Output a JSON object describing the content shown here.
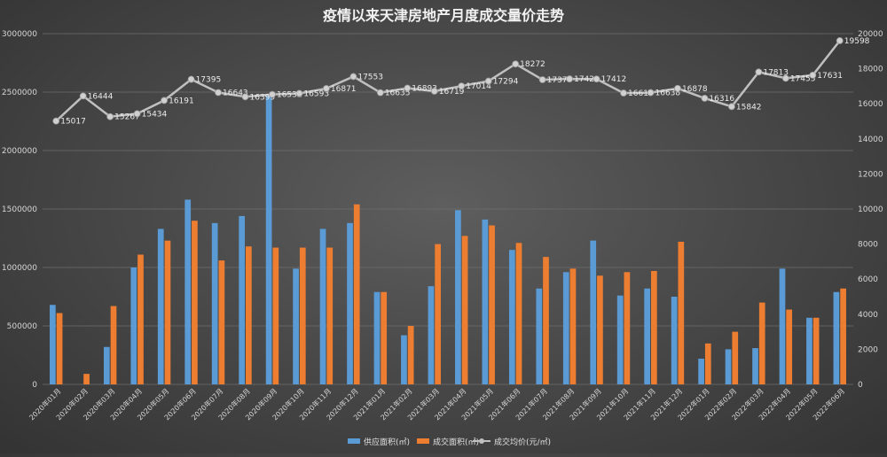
{
  "chart_data": {
    "type": "bar",
    "title": "疫情以来天津房地产月度成交量价走势",
    "categories": [
      "2020年01月",
      "2020年02月",
      "2020年03月",
      "2020年04月",
      "2020年05月",
      "2020年06月",
      "2020年07月",
      "2020年08月",
      "2020年09月",
      "2020年10月",
      "2020年11月",
      "2020年12月",
      "2021年01月",
      "2021年02月",
      "2021年03月",
      "2021年04月",
      "2021年05月",
      "2021年06月",
      "2021年07月",
      "2021年08月",
      "2021年09月",
      "2021年10月",
      "2021年11月",
      "2021年12月",
      "2022年01月",
      "2022年02月",
      "2022年03月",
      "2022年04月",
      "2022年05月",
      "2022年06月"
    ],
    "left_axis": {
      "ylim": [
        0,
        3000000
      ],
      "ticks": [
        0,
        500000,
        1000000,
        1500000,
        2000000,
        2500000,
        3000000
      ],
      "tick_labels": [
        "0",
        "500000",
        "1000000",
        "1500000",
        "2000000",
        "2500000",
        "3000000"
      ]
    },
    "right_axis": {
      "ylim": [
        0,
        20000
      ],
      "ticks": [
        0,
        2000,
        4000,
        6000,
        8000,
        10000,
        12000,
        14000,
        16000,
        18000,
        20000
      ],
      "tick_labels": [
        "0",
        "2000",
        "4000",
        "6000",
        "8000",
        "10000",
        "12000",
        "14000",
        "16000",
        "18000",
        "20000"
      ]
    },
    "series": [
      {
        "name": "供应面积(㎡)",
        "type": "bar",
        "axis": "left",
        "color": "#5b9bd5",
        "values": [
          680000,
          0,
          320000,
          1000000,
          1330000,
          1580000,
          1380000,
          1440000,
          2480000,
          990000,
          1330000,
          1380000,
          790000,
          420000,
          840000,
          1490000,
          1410000,
          1150000,
          820000,
          960000,
          1230000,
          760000,
          820000,
          750000,
          220000,
          300000,
          310000,
          990000,
          570000,
          790000
        ]
      },
      {
        "name": "成交面积(㎡)",
        "type": "bar",
        "axis": "left",
        "color": "#ed7d31",
        "values": [
          610000,
          90000,
          670000,
          1110000,
          1230000,
          1400000,
          1060000,
          1180000,
          1170000,
          1170000,
          1170000,
          1540000,
          790000,
          500000,
          1200000,
          1270000,
          1360000,
          1210000,
          1090000,
          990000,
          930000,
          960000,
          970000,
          1220000,
          350000,
          450000,
          700000,
          640000,
          570000,
          820000
        ]
      },
      {
        "name": "成交均价(元/㎡)",
        "type": "line",
        "axis": "right",
        "color": "#bfbfbf",
        "values": [
          15017,
          16444,
          15267,
          15434,
          16191,
          17395,
          16643,
          16399,
          16532,
          16593,
          16871,
          17553,
          16635,
          16893,
          16719,
          17014,
          17294,
          18272,
          17373,
          17421,
          17412,
          16613,
          16638,
          16878,
          16316,
          15842,
          17813,
          17455,
          17631,
          19598
        ],
        "labels": [
          "15017",
          "16444",
          "15267",
          "15434",
          "16191",
          "17395",
          "16643",
          "16399",
          "16532",
          "16593",
          "16871",
          "17553",
          "16635",
          "16893",
          "16719",
          "17014",
          "17294",
          "18272",
          "17373",
          "17421",
          "17412",
          "16613",
          "16638",
          "16878",
          "16316",
          "15842",
          "17813",
          "17455",
          "17631",
          "19598"
        ]
      }
    ],
    "legend": {
      "position": "bottom",
      "items": [
        "供应面积(㎡)",
        "成交面积(㎡)",
        "成交均价(元/㎡)"
      ]
    },
    "grid": true
  }
}
